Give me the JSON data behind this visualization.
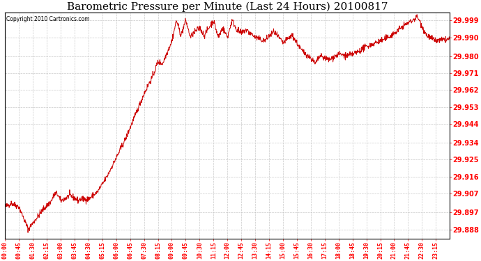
{
  "title": "Barometric Pressure per Minute (Last 24 Hours) 20100817",
  "copyright_text": "Copyright 2010 Cartronics.com",
  "line_color": "#cc0000",
  "background_color": "#ffffff",
  "plot_bg_color": "#ffffff",
  "grid_color": "#bbbbbb",
  "title_fontsize": 11,
  "yticks": [
    29.888,
    29.897,
    29.907,
    29.916,
    29.925,
    29.934,
    29.944,
    29.953,
    29.962,
    29.971,
    29.98,
    29.99,
    29.999
  ],
  "ylim": [
    29.883,
    30.003
  ],
  "xtick_labels": [
    "00:00",
    "00:45",
    "01:30",
    "02:15",
    "03:00",
    "03:45",
    "04:30",
    "05:15",
    "06:00",
    "06:45",
    "07:30",
    "08:15",
    "09:00",
    "09:45",
    "10:30",
    "11:15",
    "12:00",
    "12:45",
    "13:30",
    "14:15",
    "15:00",
    "15:45",
    "16:30",
    "17:15",
    "18:00",
    "18:45",
    "19:30",
    "20:15",
    "21:00",
    "21:45",
    "22:30",
    "23:15"
  ]
}
